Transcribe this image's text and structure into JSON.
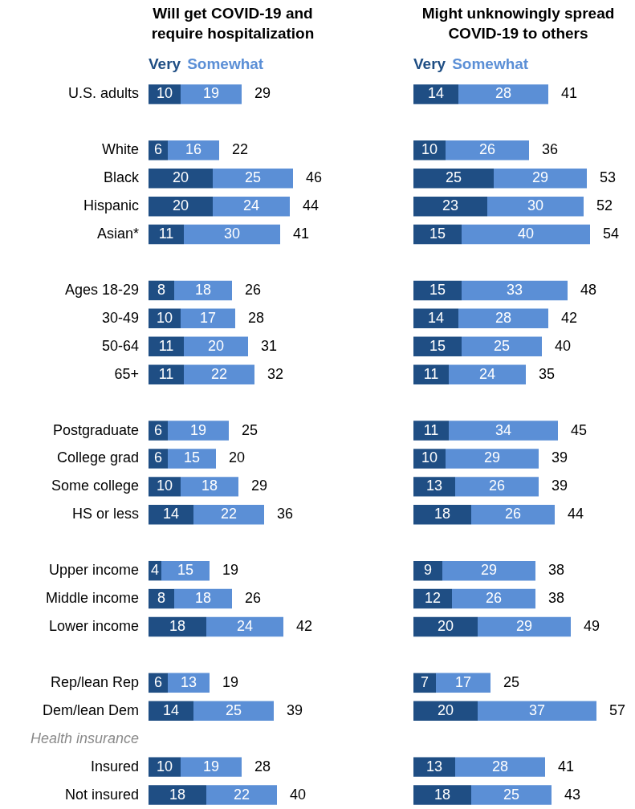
{
  "chart_data": [
    {
      "type": "bar",
      "title": "Will get COVID-19 and\nrequire hospitalization",
      "orientation": "horizontal",
      "stacked": true,
      "categories": [
        "U.S. adults",
        null,
        "White",
        "Black",
        "Hispanic",
        "Asian*",
        null,
        "Ages 18-29",
        "30-49",
        "50-64",
        "65+",
        null,
        "Postgraduate",
        "College grad",
        "Some college",
        "HS or less",
        null,
        "Upper income",
        "Middle income",
        "Lower income",
        null,
        "Rep/lean Rep",
        "Dem/lean Dem",
        "Health insurance",
        "Insured",
        "Not insured"
      ],
      "series": [
        {
          "name": "Very",
          "color": "#1f4e84",
          "values": [
            10,
            null,
            6,
            20,
            20,
            11,
            null,
            8,
            10,
            11,
            11,
            null,
            6,
            6,
            10,
            14,
            null,
            4,
            8,
            18,
            null,
            6,
            14,
            null,
            10,
            18
          ]
        },
        {
          "name": "Somewhat",
          "color": "#5b8fd6",
          "values": [
            19,
            null,
            16,
            25,
            24,
            30,
            null,
            18,
            17,
            20,
            22,
            null,
            19,
            15,
            18,
            22,
            null,
            15,
            18,
            24,
            null,
            13,
            25,
            null,
            19,
            22
          ]
        }
      ],
      "totals": [
        "29",
        null,
        "22",
        "46",
        "44",
        "41",
        null,
        "26",
        "28",
        "31",
        "32",
        null,
        "25",
        "20",
        "29",
        "36",
        null,
        "19",
        "26",
        "42",
        null,
        "19",
        "39",
        null,
        "28",
        "40"
      ],
      "data_labels": true,
      "legend": "top",
      "grid": false,
      "tick_labels": "y"
    },
    {
      "type": "bar",
      "title": "Might unknowingly spread\nCOVID-19 to others",
      "orientation": "horizontal",
      "stacked": true,
      "categories": [
        null,
        null,
        null,
        null,
        null,
        null,
        null,
        null,
        null,
        null,
        null,
        null,
        null,
        null,
        null,
        null,
        null,
        null,
        null,
        null,
        null,
        null,
        null,
        null,
        null,
        null
      ],
      "series": [
        {
          "name": "Very",
          "color": "#1f4e84",
          "values": [
            14,
            null,
            10,
            25,
            23,
            15,
            null,
            15,
            14,
            15,
            11,
            null,
            11,
            10,
            13,
            18,
            null,
            9,
            12,
            20,
            null,
            7,
            20,
            null,
            13,
            18
          ]
        },
        {
          "name": "Somewhat",
          "color": "#5b8fd6",
          "values": [
            28,
            null,
            26,
            29,
            30,
            40,
            null,
            33,
            28,
            25,
            24,
            null,
            34,
            29,
            26,
            26,
            null,
            29,
            26,
            29,
            null,
            17,
            37,
            null,
            28,
            25
          ]
        }
      ],
      "totals": [
        "41",
        null,
        "36",
        "53",
        "52",
        "54",
        null,
        "48",
        "42",
        "40",
        "35",
        null,
        "45",
        "39",
        "39",
        "44",
        null,
        "38",
        "38",
        "49",
        null,
        "25",
        "57",
        null,
        "41",
        "43"
      ],
      "data_labels": true,
      "legend": "top",
      "grid": false,
      "tick_labels": false
    }
  ]
}
